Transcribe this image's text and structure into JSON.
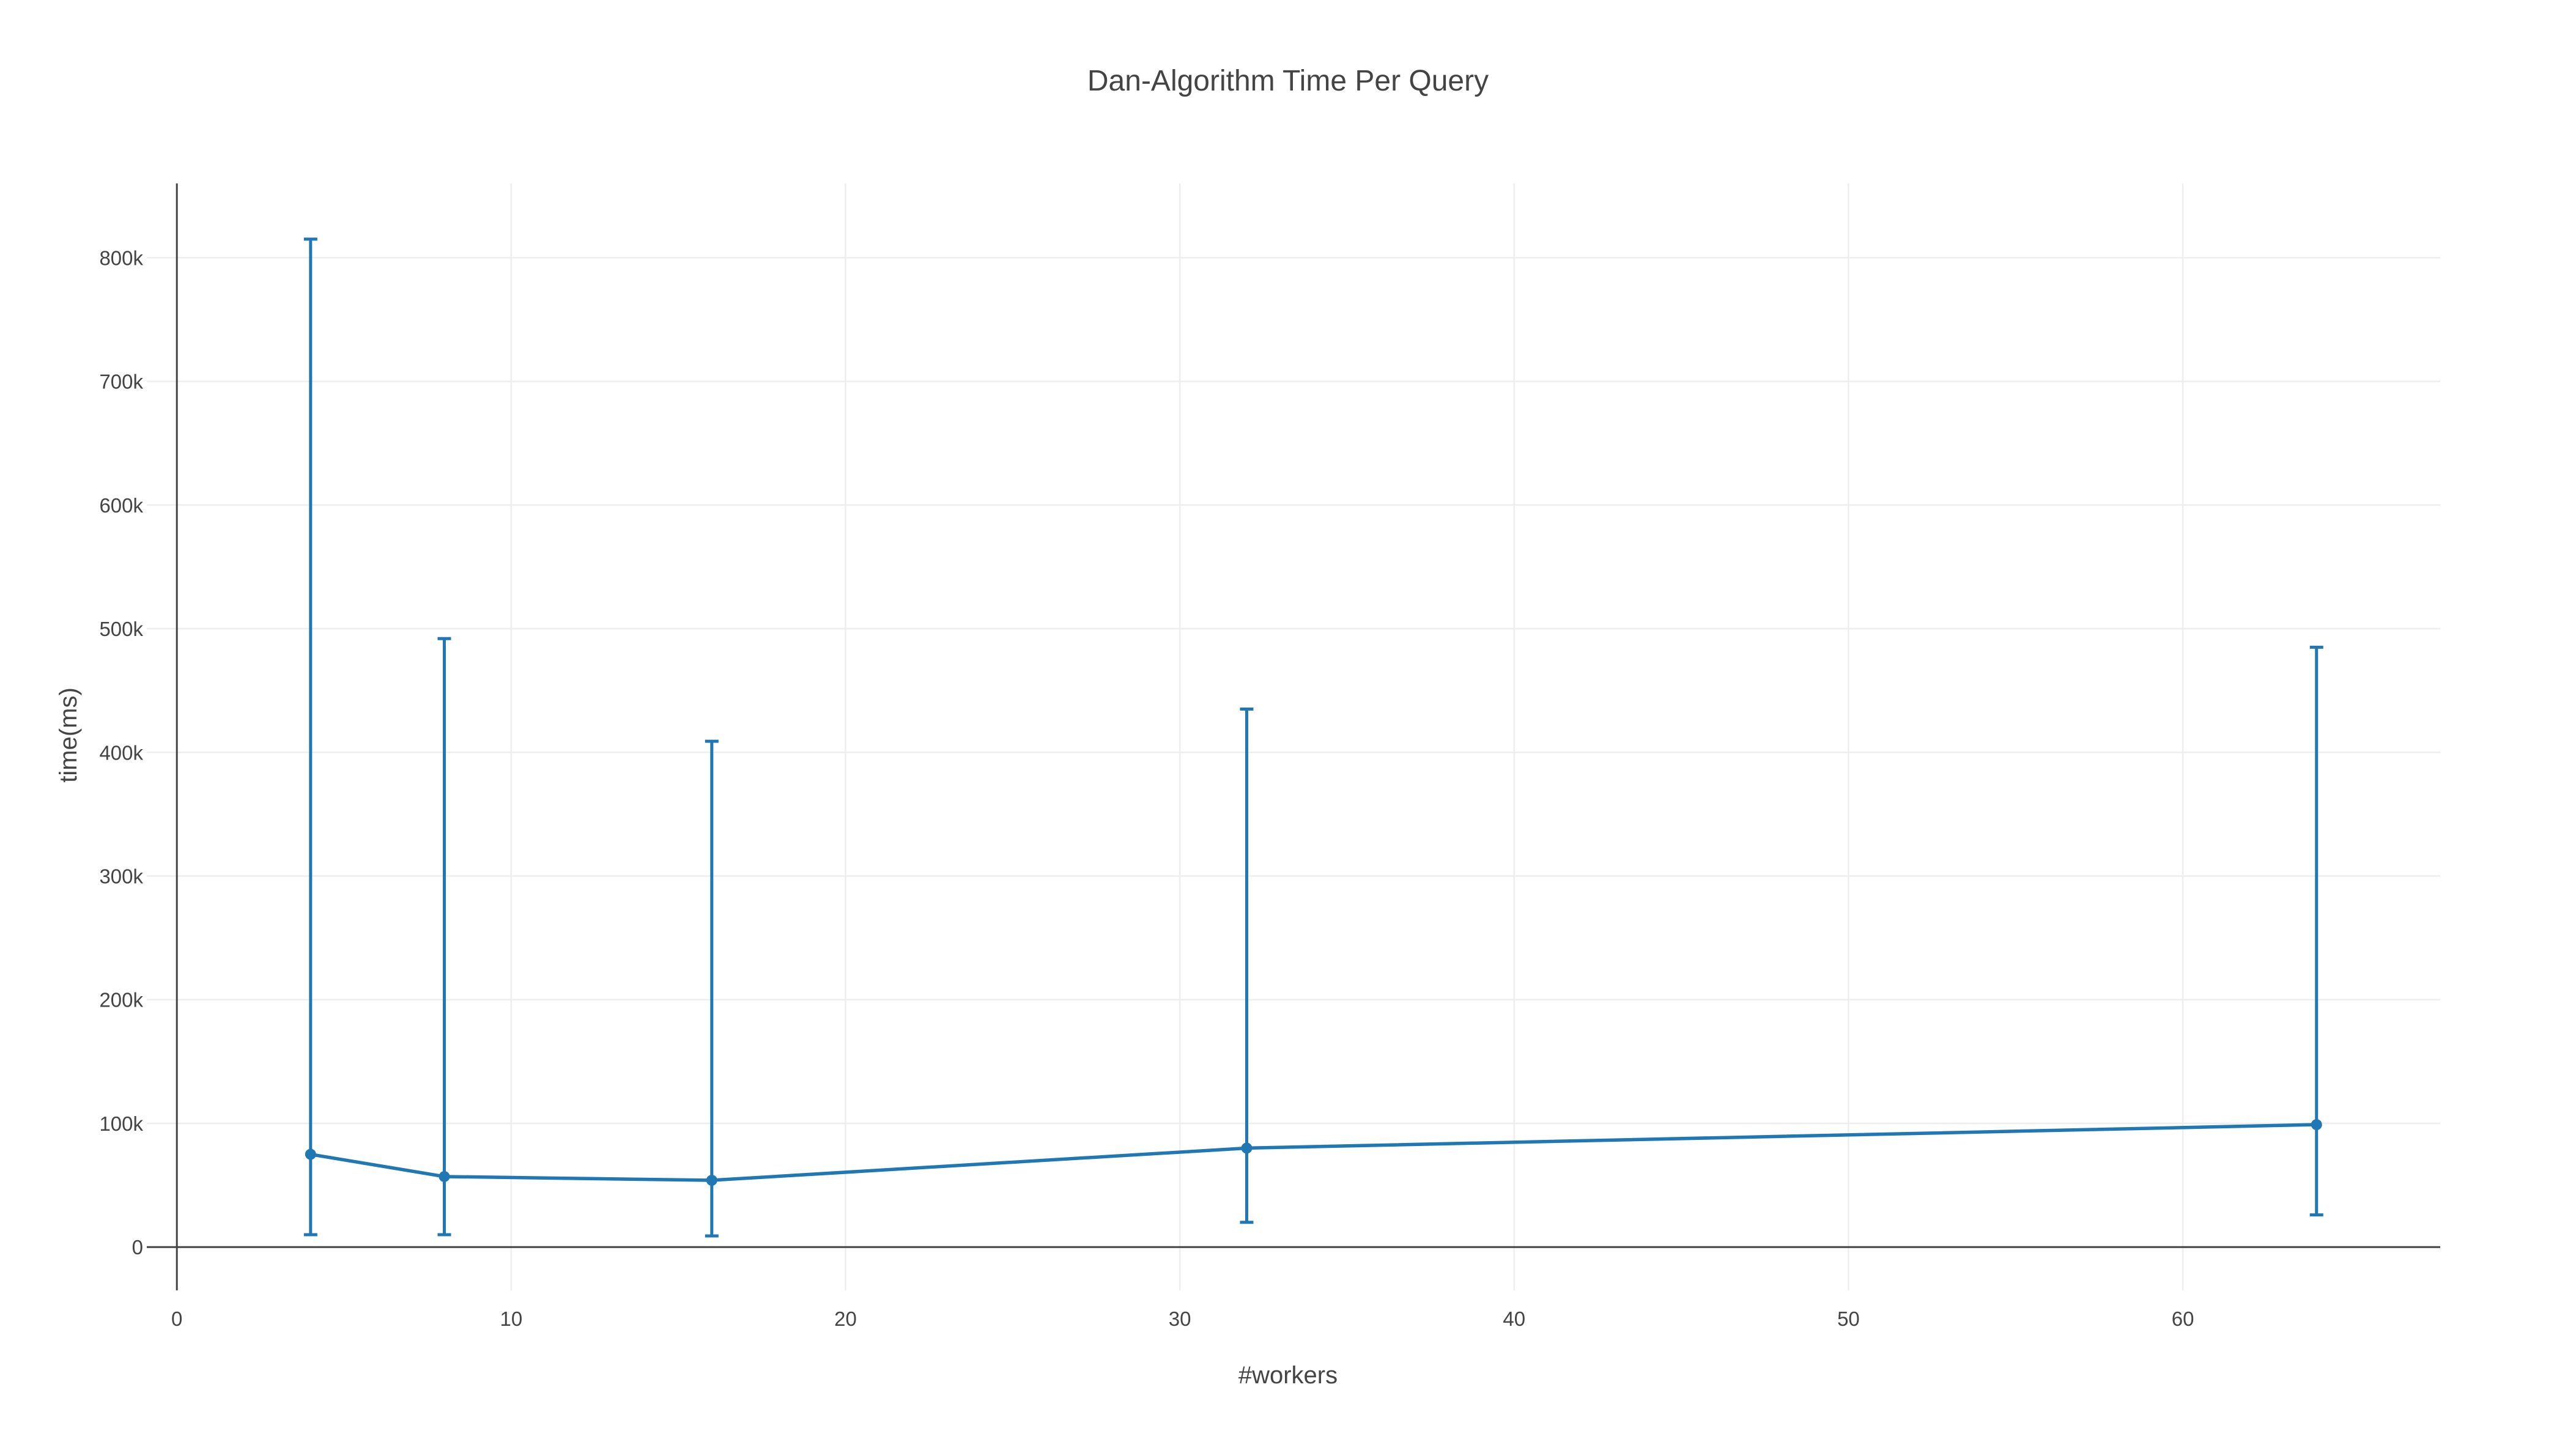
{
  "chart_data": {
    "type": "line",
    "title": "Dan-Algorithm Time Per Query",
    "xlabel": "#workers",
    "ylabel": "time(ms)",
    "xlim": [
      -0.9,
      67.7
    ],
    "ylim": [
      -35000,
      860000
    ],
    "xticks": [
      {
        "value": 0,
        "label": "0"
      },
      {
        "value": 10,
        "label": "10"
      },
      {
        "value": 20,
        "label": "20"
      },
      {
        "value": 30,
        "label": "30"
      },
      {
        "value": 40,
        "label": "40"
      },
      {
        "value": 50,
        "label": "50"
      },
      {
        "value": 60,
        "label": "60"
      }
    ],
    "yticks": [
      {
        "value": 0,
        "label": "0"
      },
      {
        "value": 100000,
        "label": "100k"
      },
      {
        "value": 200000,
        "label": "200k"
      },
      {
        "value": 300000,
        "label": "300k"
      },
      {
        "value": 400000,
        "label": "400k"
      },
      {
        "value": 500000,
        "label": "500k"
      },
      {
        "value": 600000,
        "label": "600k"
      },
      {
        "value": 700000,
        "label": "700k"
      },
      {
        "value": 800000,
        "label": "800k"
      }
    ],
    "grid": true,
    "color": "#1f77b4",
    "x": [
      4,
      8,
      16,
      32,
      64
    ],
    "series": [
      {
        "values": [
          75000,
          57000,
          54000,
          80000,
          99000
        ],
        "error_low": [
          10000,
          10000,
          9000,
          20000,
          26000
        ],
        "error_high": [
          815000,
          492000,
          409000,
          435000,
          485000
        ]
      }
    ]
  }
}
